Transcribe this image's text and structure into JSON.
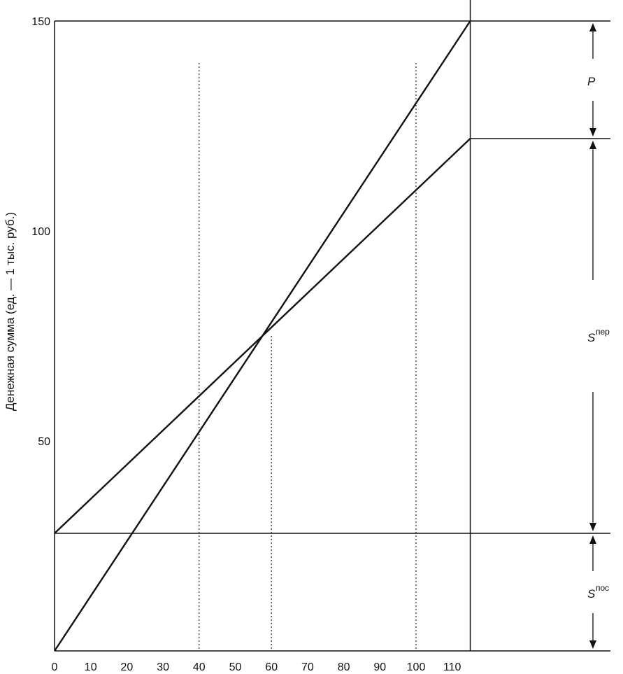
{
  "chart_data": {
    "type": "line",
    "title": "",
    "xlabel": "",
    "ylabel": "Денежная сумма (ед. — 1 тыс. руб.)",
    "xlim": [
      0,
      115
    ],
    "ylim": [
      0,
      150
    ],
    "x_ticks": [
      "0",
      "10",
      "20",
      "30",
      "40",
      "50",
      "60",
      "70",
      "80",
      "90",
      "100",
      "110"
    ],
    "y_ticks": [
      "50",
      "100",
      "150"
    ],
    "grid": false,
    "series": [
      {
        "values": [
          [
            0,
            0
          ],
          [
            115,
            150
          ]
        ],
        "color": "#111111"
      },
      {
        "values": [
          [
            0,
            28
          ],
          [
            115,
            122
          ]
        ],
        "color": "#111111"
      }
    ],
    "reference_lines": {
      "horizontal": [
        150,
        122,
        28
      ],
      "vertical_dotted": [
        40,
        60,
        100
      ],
      "vertical_solid": [
        115
      ]
    },
    "annotations": [
      {
        "label": "P",
        "sup": "",
        "from": 150,
        "to": 122
      },
      {
        "label": "S",
        "sup": "пер",
        "from": 122,
        "to": 28
      },
      {
        "label": "S",
        "sup": "пос",
        "from": 28,
        "to": 0
      }
    ]
  }
}
